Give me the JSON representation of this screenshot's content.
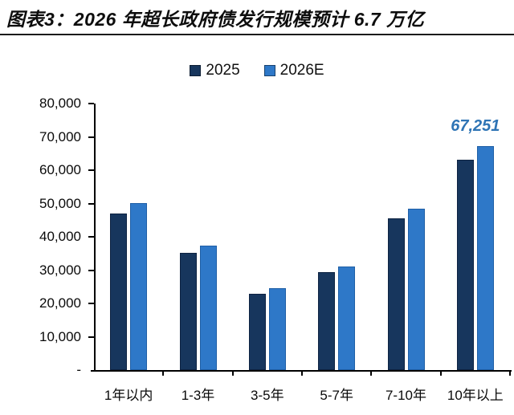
{
  "figure": {
    "title": "图表3：2026 年超长政府债发行规模预计 6.7 万亿"
  },
  "chart_data": {
    "type": "bar",
    "title": "图表3：2026 年超长政府债发行规模预计 6.7 万亿",
    "categories": [
      "1年以内",
      "1-3年",
      "3-5年",
      "5-7年",
      "7-10年",
      "10年以上"
    ],
    "series": [
      {
        "name": "2025",
        "color": "#17365D",
        "values": [
          47000,
          35200,
          23000,
          29400,
          45600,
          63200
        ]
      },
      {
        "name": "2026E",
        "color": "#2E78C8",
        "values": [
          50100,
          37400,
          24500,
          31200,
          48400,
          67251
        ]
      }
    ],
    "xlabel": "",
    "ylabel": "",
    "ylim": [
      0,
      80000
    ],
    "ytick_values": [
      0,
      10000,
      20000,
      30000,
      40000,
      50000,
      60000,
      70000,
      80000
    ],
    "ytick_labels": [
      "-",
      "10,000",
      "20,000",
      "30,000",
      "40,000",
      "50,000",
      "60,000",
      "70,000",
      "80,000"
    ],
    "grid": false,
    "legend_position": "top-center",
    "annotation": {
      "text": "67,251",
      "series_index": 1,
      "category_index": 5,
      "color": "#2E74B5"
    }
  }
}
